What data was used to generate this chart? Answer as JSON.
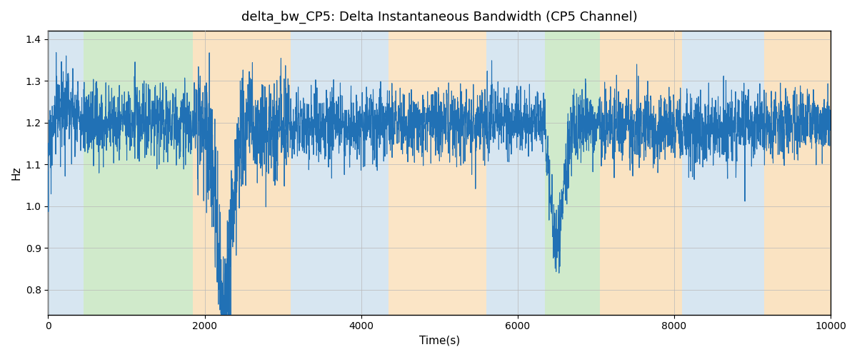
{
  "title": "delta_bw_CP5: Delta Instantaneous Bandwidth (CP5 Channel)",
  "xlabel": "Time(s)",
  "ylabel": "Hz",
  "xlim": [
    0,
    10000
  ],
  "ylim": [
    0.74,
    1.42
  ],
  "yticks": [
    0.8,
    0.9,
    1.0,
    1.1,
    1.2,
    1.3,
    1.4
  ],
  "xticks": [
    0,
    2000,
    4000,
    6000,
    8000,
    10000
  ],
  "line_color": "#2171B5",
  "line_width": 0.8,
  "background_bands": [
    {
      "xmin": 0,
      "xmax": 450,
      "color": "#C6DCEC",
      "alpha": 0.7
    },
    {
      "xmin": 450,
      "xmax": 1850,
      "color": "#B7DFB0",
      "alpha": 0.65
    },
    {
      "xmin": 1850,
      "xmax": 3100,
      "color": "#F9D8A8",
      "alpha": 0.7
    },
    {
      "xmin": 3100,
      "xmax": 4350,
      "color": "#C6DCEC",
      "alpha": 0.7
    },
    {
      "xmin": 4350,
      "xmax": 5600,
      "color": "#F9D8A8",
      "alpha": 0.65
    },
    {
      "xmin": 5600,
      "xmax": 6350,
      "color": "#C6DCEC",
      "alpha": 0.7
    },
    {
      "xmin": 6350,
      "xmax": 7050,
      "color": "#B7DFB0",
      "alpha": 0.65
    },
    {
      "xmin": 7050,
      "xmax": 8100,
      "color": "#F9D8A8",
      "alpha": 0.7
    },
    {
      "xmin": 8100,
      "xmax": 9150,
      "color": "#C6DCEC",
      "alpha": 0.7
    },
    {
      "xmin": 9150,
      "xmax": 10000,
      "color": "#F9D8A8",
      "alpha": 0.7
    }
  ],
  "seed": 17,
  "n_points": 4000,
  "base_mean": 1.195,
  "noise_std": 0.038
}
